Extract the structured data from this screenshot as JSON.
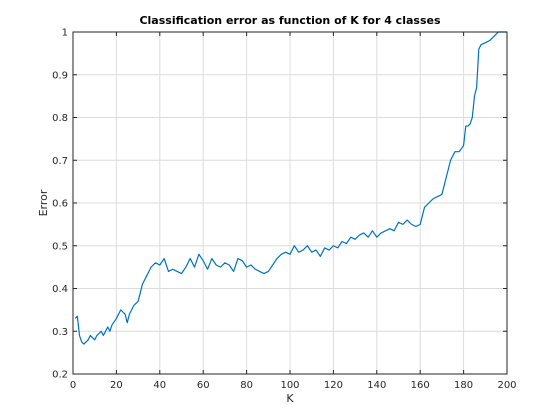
{
  "chart_data": {
    "type": "line",
    "title": "Classification error as function of K for 4 classes",
    "xlabel": "K",
    "ylabel": "Error",
    "xlim": [
      0,
      200
    ],
    "ylim": [
      0.2,
      1
    ],
    "xticks": [
      "0",
      "20",
      "40",
      "60",
      "80",
      "100",
      "120",
      "140",
      "160",
      "180",
      "200"
    ],
    "yticks": [
      "0.2",
      "0.3",
      "0.4",
      "0.5",
      "0.6",
      "0.7",
      "0.8",
      "0.9",
      "1"
    ],
    "grid": true,
    "line_color": "#0072BD",
    "series": [
      {
        "x": [
          1,
          2,
          3,
          4,
          5,
          6,
          7,
          8,
          9,
          10,
          11,
          12,
          13,
          14,
          15,
          16,
          17,
          18,
          20,
          22,
          24,
          25,
          26,
          28,
          30,
          32,
          34,
          35,
          36,
          38,
          40,
          42,
          44,
          46,
          48,
          50,
          52,
          54,
          56,
          58,
          60,
          62,
          64,
          66,
          68,
          70,
          72,
          74,
          76,
          78,
          80,
          82,
          84,
          86,
          88,
          90,
          92,
          94,
          96,
          98,
          100,
          102,
          104,
          106,
          108,
          110,
          112,
          114,
          116,
          118,
          120,
          122,
          124,
          126,
          128,
          130,
          132,
          134,
          136,
          138,
          140,
          142,
          144,
          146,
          148,
          150,
          152,
          154,
          156,
          158,
          160,
          162,
          164,
          166,
          168,
          170,
          172,
          174,
          176,
          178,
          180,
          181,
          182,
          183,
          184,
          185,
          186,
          187,
          188,
          190,
          192,
          194,
          196,
          198,
          200
        ],
        "y": [
          0.33,
          0.335,
          0.29,
          0.275,
          0.27,
          0.275,
          0.28,
          0.29,
          0.285,
          0.28,
          0.29,
          0.295,
          0.3,
          0.29,
          0.3,
          0.31,
          0.3,
          0.315,
          0.33,
          0.35,
          0.34,
          0.32,
          0.34,
          0.36,
          0.37,
          0.41,
          0.43,
          0.44,
          0.45,
          0.46,
          0.455,
          0.47,
          0.44,
          0.445,
          0.44,
          0.435,
          0.45,
          0.47,
          0.45,
          0.48,
          0.465,
          0.445,
          0.47,
          0.455,
          0.45,
          0.46,
          0.455,
          0.44,
          0.47,
          0.465,
          0.45,
          0.455,
          0.445,
          0.44,
          0.435,
          0.44,
          0.455,
          0.47,
          0.48,
          0.485,
          0.48,
          0.5,
          0.485,
          0.49,
          0.5,
          0.485,
          0.49,
          0.475,
          0.495,
          0.49,
          0.5,
          0.495,
          0.51,
          0.505,
          0.52,
          0.515,
          0.525,
          0.53,
          0.52,
          0.535,
          0.52,
          0.53,
          0.535,
          0.54,
          0.535,
          0.555,
          0.55,
          0.56,
          0.55,
          0.545,
          0.55,
          0.59,
          0.6,
          0.61,
          0.615,
          0.62,
          0.66,
          0.7,
          0.72,
          0.72,
          0.735,
          0.78,
          0.78,
          0.785,
          0.8,
          0.85,
          0.87,
          0.96,
          0.97,
          0.975,
          0.98,
          0.99,
          1,
          1,
          1
        ]
      }
    ]
  }
}
